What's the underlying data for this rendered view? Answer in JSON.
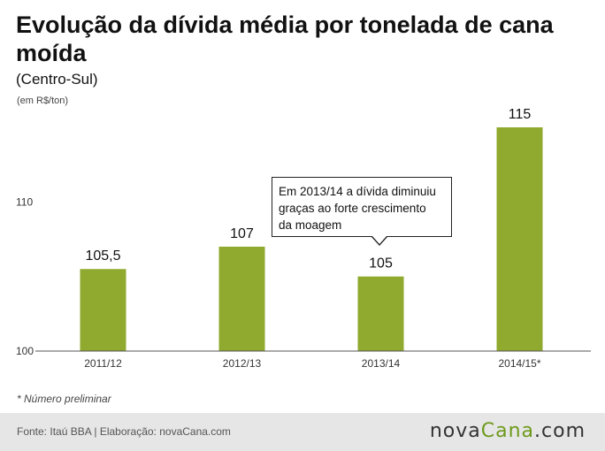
{
  "header": {
    "title": "Evolução da dívida média por tonelada de cana moída",
    "subtitle": "(Centro-Sul)",
    "unit": "(em R$/ton)"
  },
  "chart_data": {
    "type": "bar",
    "categories": [
      "2011/12",
      "2012/13",
      "2013/14",
      "2014/15*"
    ],
    "values": [
      105.5,
      107,
      105,
      115
    ],
    "value_labels": [
      "105,5",
      "107",
      "105",
      "115"
    ],
    "ylim": [
      100,
      115
    ],
    "yticks": [
      100,
      110
    ],
    "ytick_labels": [
      "100",
      "110"
    ],
    "bar_color": "#8faa2e",
    "grid": false,
    "annotation": {
      "category": "2013/14",
      "lines": [
        "Em 2013/14 a dívida diminuiu",
        "graças ao forte crescimento",
        "da moagem"
      ]
    }
  },
  "footnote": "* Número preliminar",
  "footer": {
    "source": "Fonte: Itaú BBA | Elaboração: novaCana.com",
    "logo_part1": "nova",
    "logo_part2": "Cana",
    "logo_part3": ".com"
  },
  "colors": {
    "bar": "#8faa2e",
    "footer_bg": "#e6e6e6",
    "logo_accent": "#6e9a1c"
  }
}
